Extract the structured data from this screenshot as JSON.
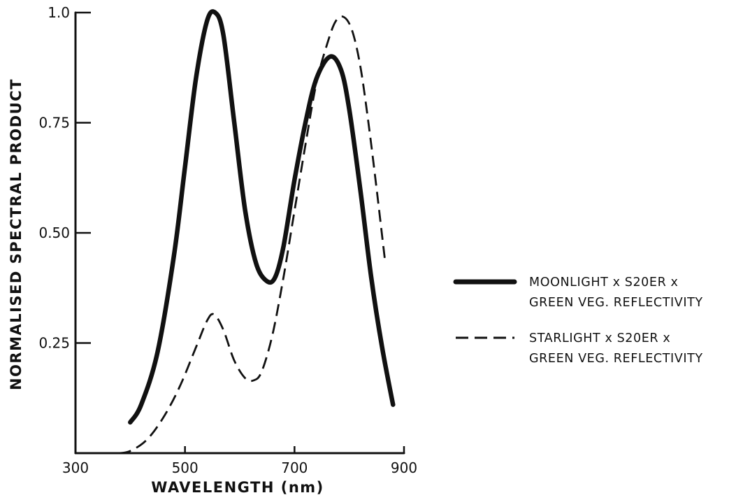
{
  "chart_data": {
    "type": "line",
    "title": "",
    "xlabel": "WAVELENGTH (nm)",
    "ylabel": "NORMALISED SPECTRAL PRODUCT",
    "xlim": [
      300,
      900
    ],
    "ylim": [
      0,
      1.0
    ],
    "x_ticks": [
      300,
      500,
      700,
      900
    ],
    "x_tick_labels": [
      "300",
      "500",
      "700",
      "900"
    ],
    "y_ticks": [
      0.25,
      0.5,
      0.75,
      1.0
    ],
    "y_tick_labels": [
      "0.25",
      "0.50",
      "0.75",
      "1.0"
    ],
    "grid": false,
    "legend_position": "right",
    "series": [
      {
        "name_lines": [
          "MOONLIGHT x S20ER x",
          "GREEN VEG. REFLECTIVITY"
        ],
        "style": "solid",
        "color": "#111111",
        "points": [
          [
            400,
            0.07
          ],
          [
            420,
            0.11
          ],
          [
            450,
            0.23
          ],
          [
            480,
            0.45
          ],
          [
            500,
            0.65
          ],
          [
            520,
            0.85
          ],
          [
            540,
            0.98
          ],
          [
            555,
            1.0
          ],
          [
            570,
            0.95
          ],
          [
            590,
            0.75
          ],
          [
            610,
            0.55
          ],
          [
            630,
            0.43
          ],
          [
            650,
            0.39
          ],
          [
            665,
            0.4
          ],
          [
            680,
            0.47
          ],
          [
            700,
            0.62
          ],
          [
            720,
            0.75
          ],
          [
            740,
            0.85
          ],
          [
            765,
            0.9
          ],
          [
            785,
            0.87
          ],
          [
            800,
            0.78
          ],
          [
            820,
            0.6
          ],
          [
            840,
            0.4
          ],
          [
            860,
            0.24
          ],
          [
            880,
            0.11
          ]
        ]
      },
      {
        "name_lines": [
          "STARLIGHT x S20ER x",
          "GREEN VEG. REFLECTIVITY"
        ],
        "style": "dashed",
        "color": "#111111",
        "points": [
          [
            380,
            0.0
          ],
          [
            400,
            0.005
          ],
          [
            430,
            0.03
          ],
          [
            460,
            0.08
          ],
          [
            490,
            0.15
          ],
          [
            520,
            0.24
          ],
          [
            540,
            0.3
          ],
          [
            553,
            0.315
          ],
          [
            570,
            0.28
          ],
          [
            590,
            0.21
          ],
          [
            610,
            0.17
          ],
          [
            625,
            0.165
          ],
          [
            640,
            0.185
          ],
          [
            660,
            0.27
          ],
          [
            680,
            0.4
          ],
          [
            700,
            0.55
          ],
          [
            720,
            0.7
          ],
          [
            740,
            0.84
          ],
          [
            760,
            0.93
          ],
          [
            775,
            0.98
          ],
          [
            790,
            0.99
          ],
          [
            805,
            0.96
          ],
          [
            820,
            0.88
          ],
          [
            835,
            0.75
          ],
          [
            850,
            0.6
          ],
          [
            865,
            0.44
          ]
        ]
      }
    ]
  }
}
